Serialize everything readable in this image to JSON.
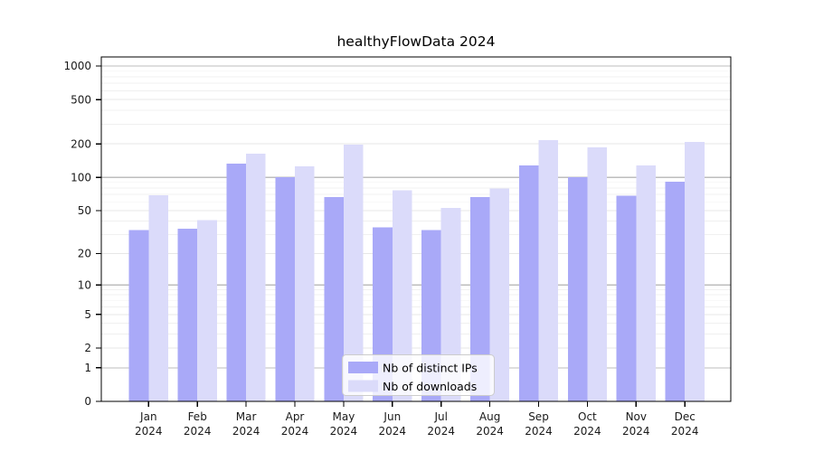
{
  "chart_data": {
    "type": "bar",
    "title": "healthyFlowData 2024",
    "categories": [
      "Jan",
      "Feb",
      "Mar",
      "Apr",
      "May",
      "Jun",
      "Jul",
      "Aug",
      "Sep",
      "Oct",
      "Nov",
      "Dec"
    ],
    "category_year": "2024",
    "series": [
      {
        "name": "Nb of distinct IPs",
        "color": "#a9a9f8",
        "values": [
          33,
          34,
          133,
          100,
          66,
          35,
          33,
          66,
          128,
          100,
          68,
          91
        ]
      },
      {
        "name": "Nb of downloads",
        "color": "#dbdbfa",
        "values": [
          69,
          41,
          163,
          126,
          197,
          76,
          53,
          79,
          216,
          186,
          128,
          208
        ]
      }
    ],
    "yscale": "log1p",
    "ylim": [
      0,
      1000
    ],
    "yticks": [
      0,
      1,
      2,
      5,
      10,
      20,
      50,
      100,
      200,
      500,
      1000
    ],
    "major_grid_values": [
      1,
      10,
      100,
      1000
    ],
    "minor_grid_values": [
      3,
      4,
      6,
      7,
      8,
      9,
      30,
      40,
      60,
      70,
      80,
      90,
      300,
      400,
      600,
      700,
      800,
      900
    ],
    "grid": "on",
    "legend_position": "lower center-right",
    "colors": {
      "major_grid": "#bdbdbd",
      "tick_grid": "#e7e7e7",
      "minor_grid": "#f0f0f0",
      "spine": "#000000",
      "legend_border": "#cccccc",
      "legend_bg_opacity": "0.8"
    }
  }
}
